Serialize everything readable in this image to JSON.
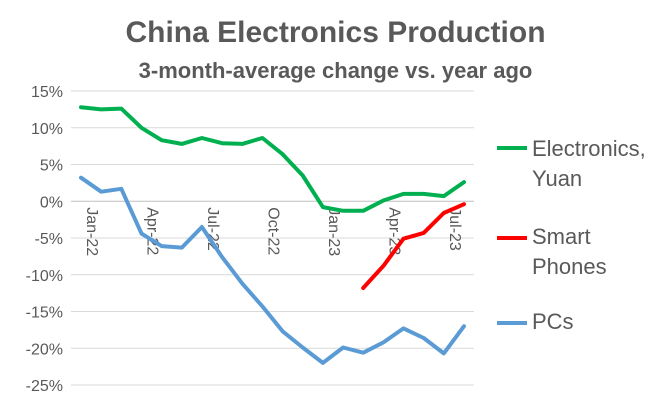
{
  "chart_data": {
    "type": "line",
    "title": "China Electronics Production",
    "subtitle": "3-month-average change vs. year ago",
    "ylim": [
      -25,
      15
    ],
    "y_ticks": [
      "15%",
      "10%",
      "5%",
      "0%",
      "-5%",
      "-10%",
      "-15%",
      "-20%",
      "-25%"
    ],
    "x_tick_labels": [
      "Jan-22",
      "Apr-22",
      "Jul-22",
      "Oct-22",
      "Jan-23",
      "Apr-23",
      "Jul-23"
    ],
    "x": [
      "Jan-22",
      "Feb-22",
      "Mar-22",
      "Apr-22",
      "May-22",
      "Jun-22",
      "Jul-22",
      "Aug-22",
      "Sep-22",
      "Oct-22",
      "Nov-22",
      "Dec-22",
      "Jan-23",
      "Feb-23",
      "Mar-23",
      "Apr-23",
      "May-23",
      "Jun-23",
      "Jul-23",
      "Aug-23"
    ],
    "grid": true,
    "legend_position": "right",
    "series": [
      {
        "name": "Electronics, Yuan",
        "color": "#00b050",
        "values": [
          12.8,
          12.5,
          12.6,
          10.0,
          8.3,
          7.8,
          8.6,
          7.9,
          7.8,
          8.6,
          6.4,
          3.5,
          -0.8,
          -1.3,
          -1.3,
          0.1,
          1.0,
          1.0,
          0.7,
          2.6
        ]
      },
      {
        "name": "Smart Phones",
        "color": "#ff0000",
        "values": [
          null,
          null,
          null,
          null,
          null,
          null,
          null,
          null,
          null,
          null,
          null,
          null,
          null,
          null,
          -11.8,
          -8.8,
          -5.1,
          -4.3,
          -1.6,
          -0.4
        ]
      },
      {
        "name": "PCs",
        "color": "#5b9bd5",
        "values": [
          3.2,
          1.3,
          1.7,
          -4.4,
          -6.1,
          -6.3,
          -3.5,
          -7.6,
          -11.2,
          -14.3,
          -17.7,
          -19.9,
          -22.0,
          -19.9,
          -20.6,
          -19.2,
          -17.3,
          -18.6,
          -20.7,
          -17.0
        ]
      }
    ]
  }
}
